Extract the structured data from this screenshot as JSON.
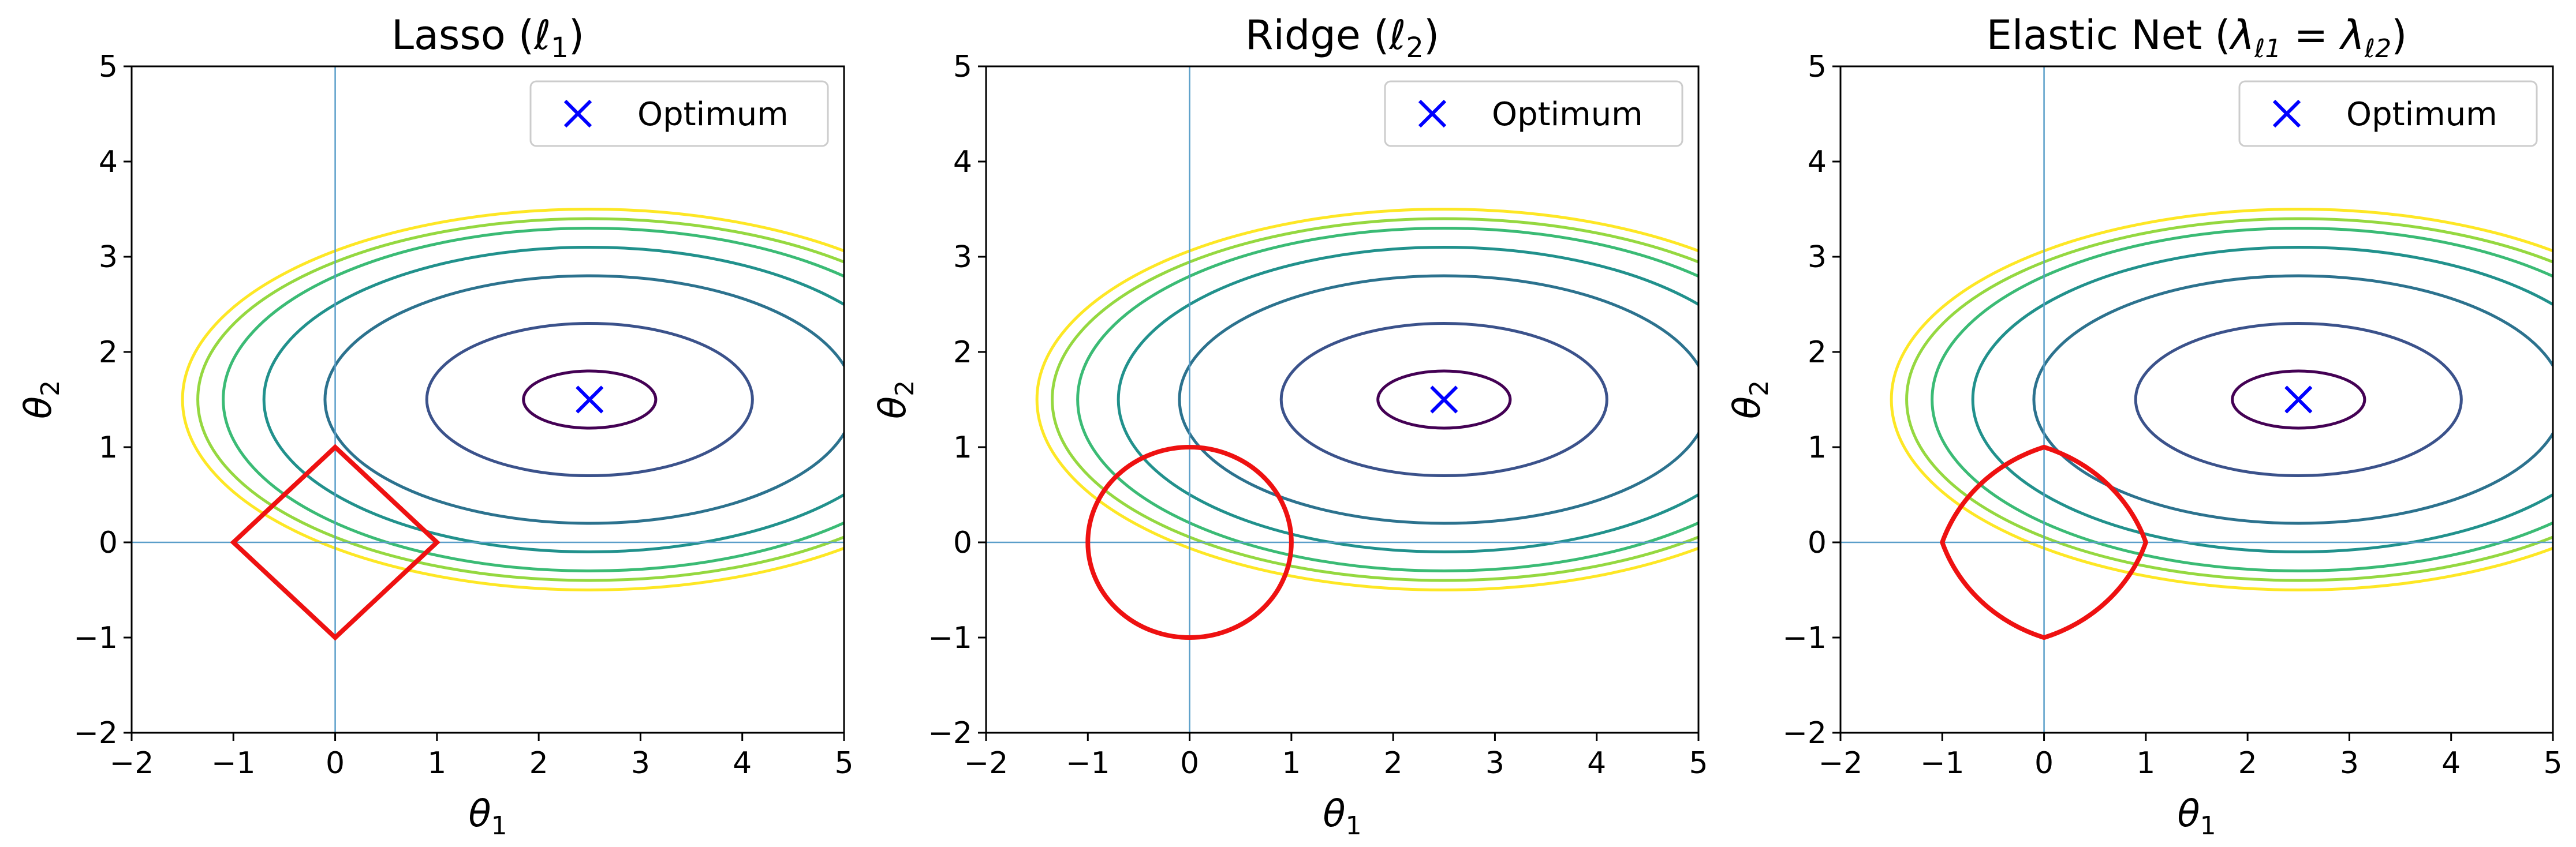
{
  "chart_data": [
    {
      "type": "contour",
      "title": "Lasso (ℓ1)",
      "title_parts": {
        "text": "Lasso (",
        "symbol": "ℓ",
        "sub": "1",
        "close": ")"
      },
      "xlabel": {
        "symbol": "θ",
        "sub": "1"
      },
      "ylabel": {
        "symbol": "θ",
        "sub": "2"
      },
      "xlim": [
        -2,
        5
      ],
      "ylim": [
        -2,
        5
      ],
      "xticks": [
        "−2",
        "−1",
        "0",
        "1",
        "2",
        "3",
        "4",
        "5"
      ],
      "yticks": [
        "−2",
        "−1",
        "0",
        "1",
        "2",
        "3",
        "4",
        "5"
      ],
      "legend": {
        "label": "Optimum",
        "position": "top-right",
        "marker": "x",
        "color": "#0000ff"
      },
      "optimum": [
        2.5,
        1.5
      ],
      "constraint": {
        "kind": "l1",
        "radius": 1,
        "color": "#ee1111"
      },
      "contours": {
        "center": [
          2.5,
          1.5
        ],
        "semi_axes": [
          [
            0.65,
            0.3
          ],
          [
            1.6,
            0.8
          ],
          [
            2.6,
            1.3
          ],
          [
            3.2,
            1.6
          ],
          [
            3.6,
            1.8
          ],
          [
            3.85,
            1.9
          ],
          [
            4.0,
            2.0
          ]
        ],
        "colors": [
          "#440154",
          "#3b528b",
          "#2c728e",
          "#21918c",
          "#3bbb75",
          "#95d840",
          "#fde725"
        ]
      },
      "crosshair_color": "#5a9ec9"
    },
    {
      "type": "contour",
      "title": "Ridge (ℓ2)",
      "title_parts": {
        "text": "Ridge (",
        "symbol": "ℓ",
        "sub": "2",
        "close": ")"
      },
      "xlabel": {
        "symbol": "θ",
        "sub": "1"
      },
      "ylabel": {
        "symbol": "θ",
        "sub": "2"
      },
      "xlim": [
        -2,
        5
      ],
      "ylim": [
        -2,
        5
      ],
      "xticks": [
        "−2",
        "−1",
        "0",
        "1",
        "2",
        "3",
        "4",
        "5"
      ],
      "yticks": [
        "−2",
        "−1",
        "0",
        "1",
        "2",
        "3",
        "4",
        "5"
      ],
      "legend": {
        "label": "Optimum",
        "position": "top-right",
        "marker": "x",
        "color": "#0000ff"
      },
      "optimum": [
        2.5,
        1.5
      ],
      "constraint": {
        "kind": "l2",
        "radius": 1,
        "color": "#ee1111"
      },
      "contours": {
        "center": [
          2.5,
          1.5
        ],
        "semi_axes": [
          [
            0.65,
            0.3
          ],
          [
            1.6,
            0.8
          ],
          [
            2.6,
            1.3
          ],
          [
            3.2,
            1.6
          ],
          [
            3.6,
            1.8
          ],
          [
            3.85,
            1.9
          ],
          [
            4.0,
            2.0
          ]
        ],
        "colors": [
          "#440154",
          "#3b528b",
          "#2c728e",
          "#21918c",
          "#3bbb75",
          "#95d840",
          "#fde725"
        ]
      },
      "crosshair_color": "#5a9ec9"
    },
    {
      "type": "contour",
      "title": "Elastic Net (λℓ1 = λℓ2)",
      "title_parts": {
        "text": "Elastic Net (",
        "symbol": "λ",
        "sub": "ℓ1",
        "eq": " = ",
        "symbol2": "λ",
        "sub2": "ℓ2",
        "close": ")"
      },
      "xlabel": {
        "symbol": "θ",
        "sub": "1"
      },
      "ylabel": {
        "symbol": "θ",
        "sub": "2"
      },
      "xlim": [
        -2,
        5
      ],
      "ylim": [
        -2,
        5
      ],
      "xticks": [
        "−2",
        "−1",
        "0",
        "1",
        "2",
        "3",
        "4",
        "5"
      ],
      "yticks": [
        "−2",
        "−1",
        "0",
        "1",
        "2",
        "3",
        "4",
        "5"
      ],
      "legend": {
        "label": "Optimum",
        "position": "top-right",
        "marker": "x",
        "color": "#0000ff"
      },
      "optimum": [
        2.5,
        1.5
      ],
      "constraint": {
        "kind": "elastic",
        "radius": 1,
        "color": "#ee1111"
      },
      "contours": {
        "center": [
          2.5,
          1.5
        ],
        "semi_axes": [
          [
            0.65,
            0.3
          ],
          [
            1.6,
            0.8
          ],
          [
            2.6,
            1.3
          ],
          [
            3.2,
            1.6
          ],
          [
            3.6,
            1.8
          ],
          [
            3.85,
            1.9
          ],
          [
            4.0,
            2.0
          ]
        ],
        "colors": [
          "#440154",
          "#3b528b",
          "#2c728e",
          "#21918c",
          "#3bbb75",
          "#95d840",
          "#fde725"
        ]
      },
      "crosshair_color": "#5a9ec9"
    }
  ]
}
